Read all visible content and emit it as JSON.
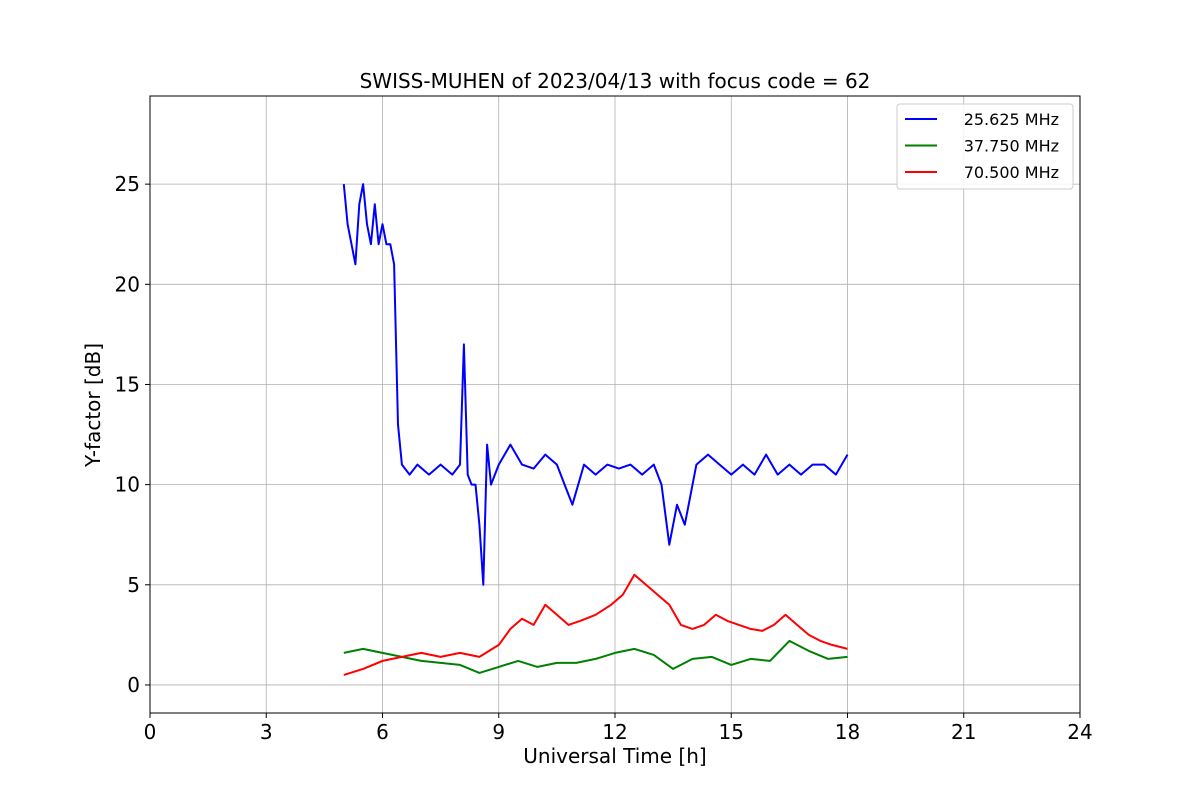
{
  "chart_data": {
    "type": "line",
    "title": "SWISS-MUHEN of 2023/04/13 with focus code = 62",
    "xlabel": "Universal Time [h]",
    "ylabel": "Y-factor [dB]",
    "xlim": [
      0,
      24
    ],
    "ylim": [
      -1.4,
      29.4
    ],
    "xticks": [
      0,
      3,
      6,
      9,
      12,
      15,
      18,
      21,
      24
    ],
    "yticks": [
      0,
      5,
      10,
      15,
      20,
      25
    ],
    "grid": true,
    "legend_position": "top-right",
    "series": [
      {
        "name": "25.625 MHz",
        "color": "#0000ff",
        "x": [
          5.0,
          5.1,
          5.2,
          5.3,
          5.4,
          5.5,
          5.6,
          5.7,
          5.8,
          5.9,
          6.0,
          6.1,
          6.2,
          6.3,
          6.4,
          6.5,
          6.7,
          6.9,
          7.2,
          7.5,
          7.8,
          8.0,
          8.1,
          8.2,
          8.3,
          8.4,
          8.5,
          8.6,
          8.7,
          8.8,
          9.0,
          9.3,
          9.6,
          9.9,
          10.2,
          10.5,
          10.7,
          10.9,
          11.2,
          11.5,
          11.8,
          12.1,
          12.4,
          12.7,
          13.0,
          13.2,
          13.4,
          13.6,
          13.8,
          14.1,
          14.4,
          14.7,
          15.0,
          15.3,
          15.6,
          15.9,
          16.2,
          16.5,
          16.8,
          17.1,
          17.4,
          17.7,
          18.0
        ],
        "y": [
          25,
          23,
          22,
          21,
          24,
          25,
          23,
          22,
          24,
          22,
          23,
          22,
          22,
          21,
          13,
          11,
          10.5,
          11,
          10.5,
          11,
          10.5,
          11,
          17,
          10.5,
          10,
          10,
          8,
          5,
          12,
          10,
          11,
          12,
          11,
          10.8,
          11.5,
          11,
          10,
          9,
          11,
          10.5,
          11,
          10.8,
          11,
          10.5,
          11,
          10,
          7,
          9,
          8,
          11,
          11.5,
          11,
          10.5,
          11,
          10.5,
          11.5,
          10.5,
          11,
          10.5,
          11,
          11,
          10.5,
          11.5
        ]
      },
      {
        "name": "37.750 MHz",
        "color": "#008000",
        "x": [
          5.0,
          5.5,
          6.0,
          6.5,
          7.0,
          7.5,
          8.0,
          8.5,
          9.0,
          9.5,
          10.0,
          10.5,
          11.0,
          11.5,
          12.0,
          12.5,
          13.0,
          13.5,
          14.0,
          14.5,
          15.0,
          15.5,
          16.0,
          16.5,
          17.0,
          17.5,
          18.0
        ],
        "y": [
          1.6,
          1.8,
          1.6,
          1.4,
          1.2,
          1.1,
          1.0,
          0.6,
          0.9,
          1.2,
          0.9,
          1.1,
          1.1,
          1.3,
          1.6,
          1.8,
          1.5,
          0.8,
          1.3,
          1.4,
          1.0,
          1.3,
          1.2,
          2.2,
          1.7,
          1.3,
          1.4
        ]
      },
      {
        "name": "70.500 MHz",
        "color": "#ff0000",
        "x": [
          5.0,
          5.5,
          6.0,
          6.5,
          7.0,
          7.5,
          8.0,
          8.5,
          9.0,
          9.3,
          9.6,
          9.9,
          10.2,
          10.5,
          10.8,
          11.1,
          11.5,
          11.9,
          12.2,
          12.5,
          12.8,
          13.1,
          13.4,
          13.7,
          14.0,
          14.3,
          14.6,
          14.9,
          15.2,
          15.5,
          15.8,
          16.1,
          16.4,
          16.7,
          17.0,
          17.3,
          17.6,
          18.0
        ],
        "y": [
          0.5,
          0.8,
          1.2,
          1.4,
          1.6,
          1.4,
          1.6,
          1.4,
          2.0,
          2.8,
          3.3,
          3.0,
          4.0,
          3.5,
          3.0,
          3.2,
          3.5,
          4.0,
          4.5,
          5.5,
          5.0,
          4.5,
          4.0,
          3.0,
          2.8,
          3.0,
          3.5,
          3.2,
          3.0,
          2.8,
          2.7,
          3.0,
          3.5,
          3.0,
          2.5,
          2.2,
          2.0,
          1.8
        ]
      }
    ]
  }
}
